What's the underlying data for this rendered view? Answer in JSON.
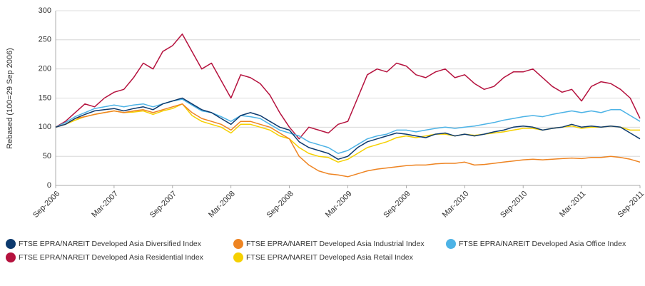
{
  "chart_data": {
    "type": "line",
    "ylabel": "Rebased (100=29 Sep 2006)",
    "x": [
      "2006-09",
      "2006-10",
      "2006-11",
      "2006-12",
      "2007-01",
      "2007-02",
      "2007-03",
      "2007-04",
      "2007-05",
      "2007-06",
      "2007-07",
      "2007-08",
      "2007-09",
      "2007-10",
      "2007-11",
      "2007-12",
      "2008-01",
      "2008-02",
      "2008-03",
      "2008-04",
      "2008-05",
      "2008-06",
      "2008-07",
      "2008-08",
      "2008-09",
      "2008-10",
      "2008-11",
      "2008-12",
      "2009-01",
      "2009-02",
      "2009-03",
      "2009-04",
      "2009-05",
      "2009-06",
      "2009-07",
      "2009-08",
      "2009-09",
      "2009-10",
      "2009-11",
      "2009-12",
      "2010-01",
      "2010-02",
      "2010-03",
      "2010-04",
      "2010-05",
      "2010-06",
      "2010-07",
      "2010-08",
      "2010-09",
      "2010-10",
      "2010-11",
      "2010-12",
      "2011-01",
      "2011-02",
      "2011-03",
      "2011-04",
      "2011-05",
      "2011-06",
      "2011-07",
      "2011-08",
      "2011-09"
    ],
    "xlim": [
      "2006-09",
      "2011-09"
    ],
    "xticks": [
      {
        "value": "2006-09",
        "label": "Sep-2006"
      },
      {
        "value": "2007-03",
        "label": "Mar-2007"
      },
      {
        "value": "2007-09",
        "label": "Sep-2007"
      },
      {
        "value": "2008-03",
        "label": "Mar-2008"
      },
      {
        "value": "2008-09",
        "label": "Sep-2008"
      },
      {
        "value": "2009-03",
        "label": "Mar-2009"
      },
      {
        "value": "2009-09",
        "label": "Sep-2009"
      },
      {
        "value": "2010-03",
        "label": "Mar-2010"
      },
      {
        "value": "2010-09",
        "label": "Sep-2010"
      },
      {
        "value": "2011-03",
        "label": "Mar-2011"
      },
      {
        "value": "2011-09",
        "label": "Sep-2011"
      }
    ],
    "ylim": [
      0,
      300
    ],
    "yticks": [
      0,
      50,
      100,
      150,
      200,
      250,
      300
    ],
    "grid": true,
    "series": [
      {
        "name": "FTSE EPRA/NAREIT Developed Asia Residential Index",
        "color": "#b5123e",
        "values": [
          100,
          110,
          125,
          140,
          135,
          150,
          160,
          165,
          185,
          210,
          200,
          230,
          240,
          260,
          230,
          200,
          210,
          180,
          150,
          190,
          185,
          175,
          155,
          125,
          100,
          80,
          100,
          95,
          90,
          105,
          110,
          150,
          190,
          200,
          195,
          210,
          205,
          190,
          185,
          195,
          200,
          185,
          190,
          175,
          165,
          170,
          185,
          195,
          195,
          200,
          185,
          170,
          160,
          165,
          145,
          170,
          178,
          175,
          165,
          150,
          115
        ]
      },
      {
        "name": "FTSE EPRA/NAREIT Developed Asia Office Index",
        "color": "#4db3e6",
        "values": [
          100,
          108,
          118,
          125,
          132,
          135,
          138,
          135,
          138,
          140,
          135,
          140,
          145,
          148,
          138,
          128,
          125,
          118,
          110,
          120,
          118,
          115,
          105,
          95,
          90,
          85,
          75,
          70,
          65,
          55,
          60,
          70,
          80,
          85,
          88,
          95,
          95,
          92,
          95,
          98,
          100,
          98,
          100,
          102,
          105,
          108,
          112,
          115,
          118,
          120,
          118,
          122,
          125,
          128,
          125,
          128,
          125,
          130,
          130,
          120,
          110
        ]
      },
      {
        "name": "FTSE EPRA/NAREIT Developed Asia Retail Index",
        "color": "#f5d000",
        "values": [
          100,
          105,
          112,
          118,
          122,
          125,
          128,
          125,
          126,
          128,
          122,
          128,
          132,
          140,
          120,
          110,
          105,
          100,
          90,
          105,
          105,
          100,
          95,
          85,
          80,
          65,
          55,
          50,
          48,
          40,
          45,
          55,
          65,
          70,
          75,
          82,
          85,
          82,
          85,
          88,
          88,
          85,
          88,
          86,
          88,
          90,
          92,
          95,
          98,
          98,
          95,
          98,
          100,
          102,
          98,
          100,
          100,
          102,
          100,
          95,
          95
        ]
      },
      {
        "name": "FTSE EPRA/NAREIT Developed Asia Industrial Index",
        "color": "#ee8422",
        "values": [
          100,
          105,
          115,
          118,
          122,
          125,
          128,
          125,
          128,
          130,
          125,
          130,
          135,
          140,
          125,
          115,
          110,
          105,
          95,
          110,
          110,
          105,
          100,
          90,
          80,
          50,
          35,
          25,
          20,
          18,
          15,
          20,
          25,
          28,
          30,
          32,
          34,
          35,
          35,
          37,
          38,
          38,
          40,
          35,
          36,
          38,
          40,
          42,
          44,
          45,
          44,
          45,
          46,
          47,
          46,
          48,
          48,
          50,
          48,
          45,
          40
        ]
      },
      {
        "name": "FTSE EPRA/NAREIT Developed Asia Diversified Index",
        "color": "#0d3a6e",
        "values": [
          100,
          105,
          115,
          122,
          128,
          130,
          132,
          128,
          132,
          135,
          130,
          140,
          145,
          150,
          140,
          130,
          125,
          115,
          105,
          120,
          125,
          120,
          110,
          100,
          95,
          75,
          65,
          60,
          55,
          45,
          50,
          65,
          75,
          80,
          85,
          90,
          88,
          85,
          82,
          88,
          90,
          85,
          88,
          85,
          88,
          92,
          95,
          100,
          102,
          100,
          95,
          98,
          100,
          105,
          100,
          102,
          100,
          102,
          100,
          90,
          80
        ]
      }
    ]
  }
}
